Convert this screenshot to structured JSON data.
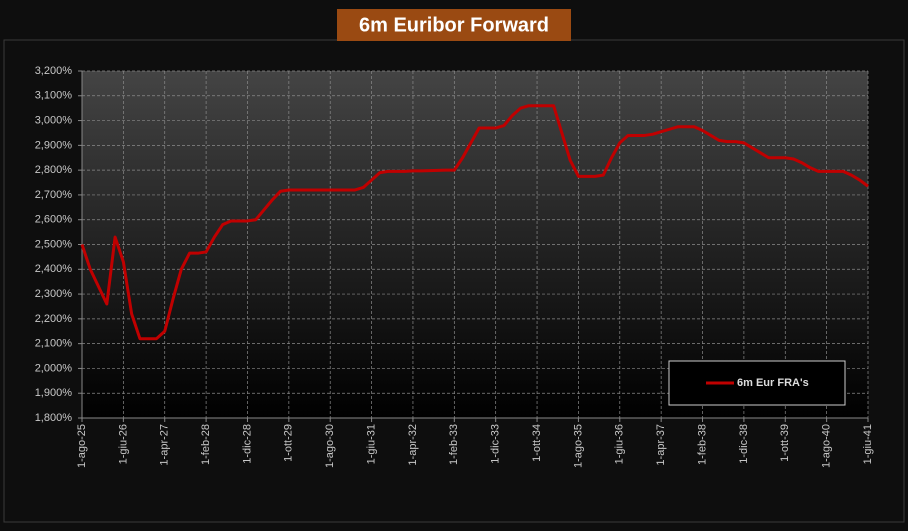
{
  "chart_data": {
    "type": "line",
    "title": "6m Euribor Forward",
    "categories": [
      "1-ago-25",
      null,
      null,
      null,
      null,
      "1-giu-26",
      null,
      null,
      null,
      null,
      "1-apr-27",
      null,
      null,
      null,
      null,
      "1-feb-28",
      null,
      null,
      null,
      null,
      "1-dic-28",
      null,
      null,
      null,
      null,
      "1-ott-29",
      null,
      null,
      null,
      null,
      "1-ago-30",
      null,
      null,
      null,
      null,
      "1-giu-31",
      null,
      null,
      null,
      null,
      "1-apr-32",
      null,
      null,
      null,
      null,
      "1-feb-33",
      null,
      null,
      null,
      null,
      "1-dic-33",
      null,
      null,
      null,
      null,
      "1-ott-34",
      null,
      null,
      null,
      null,
      "1-ago-35",
      null,
      null,
      null,
      null,
      "1-giu-36",
      null,
      null,
      null,
      null,
      "1-apr-37",
      null,
      null,
      null,
      null,
      "1-feb-38",
      null,
      null,
      null,
      null,
      "1-dic-38",
      null,
      null,
      null,
      null,
      "1-ott-39",
      null,
      null,
      null,
      null,
      "1-ago-40",
      null,
      null,
      null,
      null,
      "1-giu-41"
    ],
    "series": [
      {
        "name": "6m Eur FRA's",
        "color": "#c00000",
        "values": [
          2.5,
          2.4,
          2.33,
          2.26,
          2.53,
          2.43,
          2.22,
          2.12,
          2.12,
          2.12,
          2.15,
          2.28,
          2.4,
          2.465,
          2.465,
          2.47,
          2.53,
          2.58,
          2.595,
          2.595,
          2.595,
          2.6,
          2.64,
          2.68,
          2.715,
          2.72,
          2.72,
          2.72,
          2.72,
          2.72,
          2.72,
          2.72,
          2.72,
          2.72,
          2.73,
          2.76,
          2.79,
          2.795,
          2.795,
          2.795,
          2.797,
          2.797,
          2.798,
          2.799,
          2.8,
          2.8,
          2.85,
          2.91,
          2.97,
          2.97,
          2.97,
          2.98,
          3.02,
          3.05,
          3.06,
          3.06,
          3.06,
          3.06,
          2.95,
          2.84,
          2.775,
          2.775,
          2.775,
          2.78,
          2.85,
          2.91,
          2.94,
          2.94,
          2.94,
          2.945,
          2.955,
          2.965,
          2.975,
          2.975,
          2.975,
          2.96,
          2.94,
          2.92,
          2.915,
          2.915,
          2.91,
          2.89,
          2.87,
          2.85,
          2.85,
          2.85,
          2.845,
          2.83,
          2.81,
          2.795,
          2.795,
          2.795,
          2.795,
          2.78,
          2.76,
          2.735
        ]
      }
    ],
    "ylim": [
      1.8,
      3.2
    ],
    "yticks": [
      {
        "value": 1.8,
        "label": "1,800%"
      },
      {
        "value": 1.9,
        "label": "1,900%"
      },
      {
        "value": 2.0,
        "label": "2,000%"
      },
      {
        "value": 2.1,
        "label": "2,100%"
      },
      {
        "value": 2.2,
        "label": "2,200%"
      },
      {
        "value": 2.3,
        "label": "2,300%"
      },
      {
        "value": 2.4,
        "label": "2,400%"
      },
      {
        "value": 2.5,
        "label": "2,500%"
      },
      {
        "value": 2.6,
        "label": "2,600%"
      },
      {
        "value": 2.7,
        "label": "2,700%"
      },
      {
        "value": 2.8,
        "label": "2,800%"
      },
      {
        "value": 2.9,
        "label": "2,900%"
      },
      {
        "value": 3.0,
        "label": "3,000%"
      },
      {
        "value": 3.1,
        "label": "3,100%"
      },
      {
        "value": 3.2,
        "label": "3,200%"
      }
    ],
    "grid": true,
    "legend": "lower right"
  }
}
